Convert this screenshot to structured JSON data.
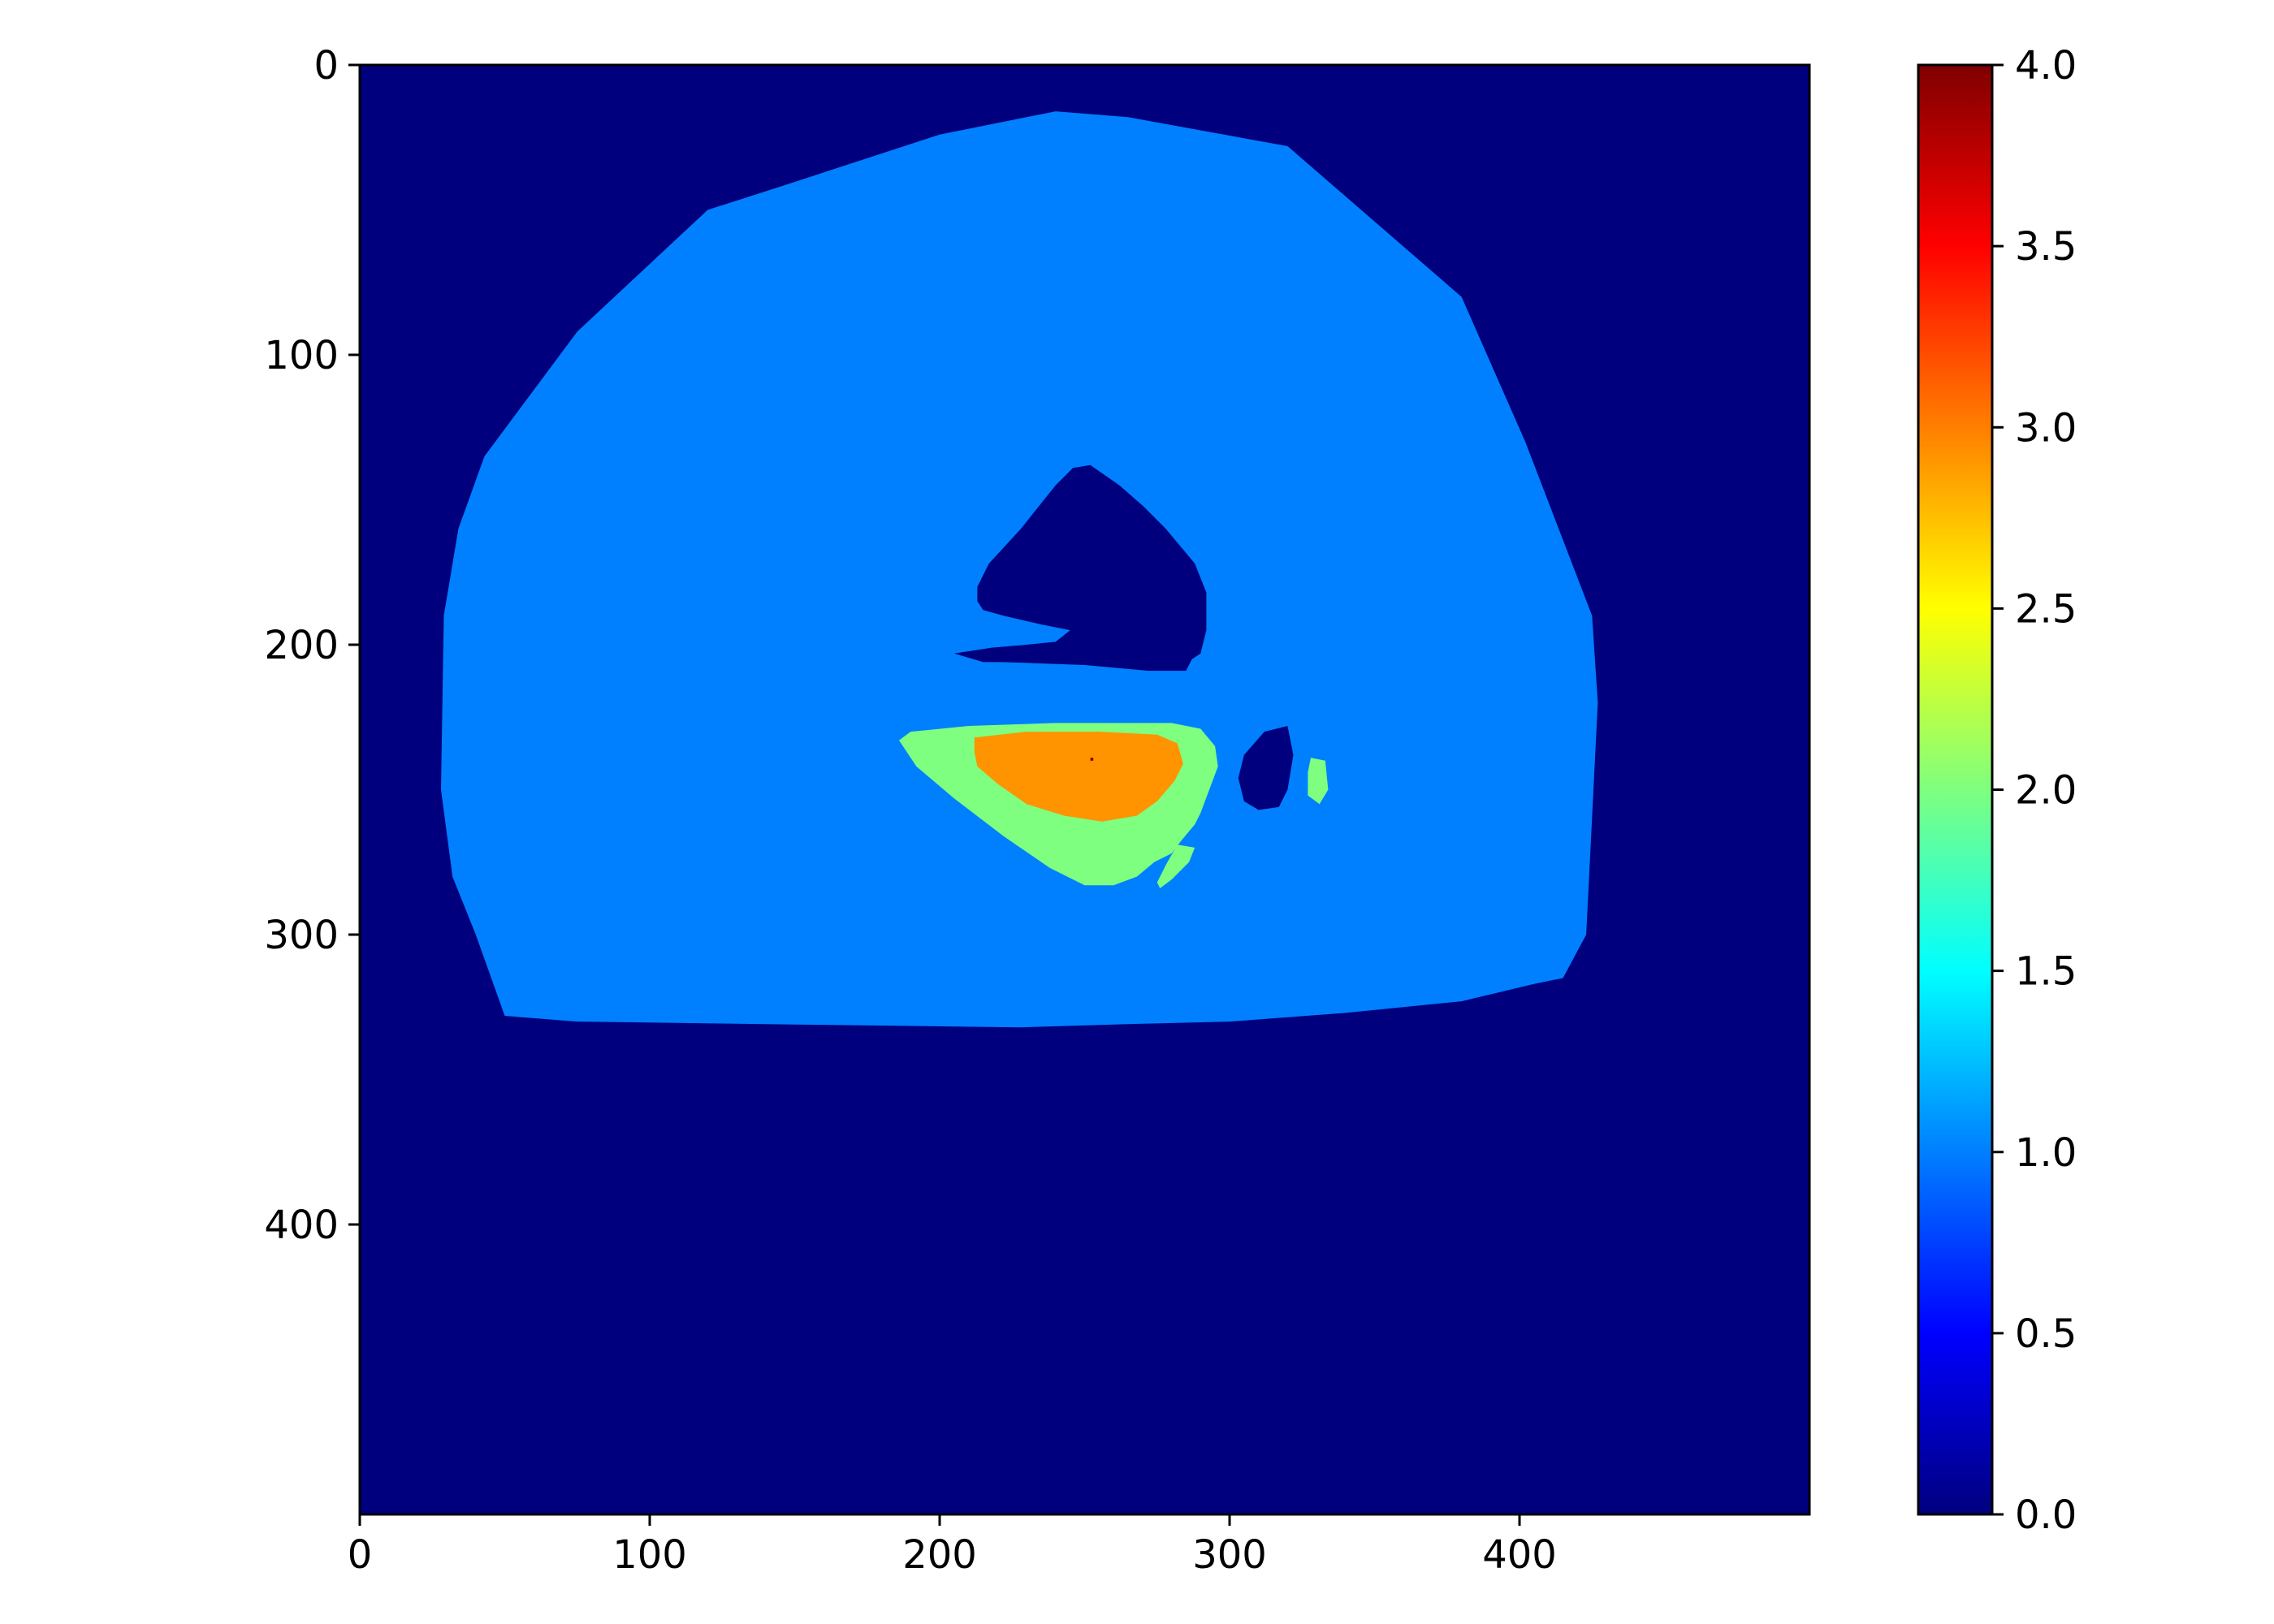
{
  "chart_data": {
    "type": "heatmap",
    "title": "",
    "xlabel": "",
    "ylabel": "",
    "image_shape": [
      500,
      500
    ],
    "xlim": [
      0,
      500
    ],
    "ylim": [
      500,
      0
    ],
    "xticks": [
      0,
      100,
      200,
      300,
      400
    ],
    "yticks": [
      0,
      100,
      200,
      300,
      400
    ],
    "colormap": "jet",
    "background_value": 0,
    "colorbar": {
      "range": [
        0.0,
        4.0
      ],
      "ticks": [
        "0.0",
        "0.5",
        "1.0",
        "1.5",
        "2.0",
        "2.5",
        "3.0",
        "3.5",
        "4.0"
      ],
      "position": "right",
      "colors": [
        "#00007f",
        "#0000ff",
        "#007fff",
        "#00ffff",
        "#7fff7f",
        "#ffff00",
        "#ff7f00",
        "#ff0000",
        "#7f0000"
      ]
    },
    "regions": [
      {
        "value": 1,
        "color": "#0080ff",
        "polygon": [
          [
            240,
            16
          ],
          [
            265,
            18
          ],
          [
            320,
            28
          ],
          [
            380,
            80
          ],
          [
            402,
            130
          ],
          [
            425,
            190
          ],
          [
            427,
            220
          ],
          [
            423,
            300
          ],
          [
            415,
            315
          ],
          [
            405,
            317
          ],
          [
            380,
            323
          ],
          [
            340,
            327
          ],
          [
            300,
            330
          ],
          [
            260,
            331
          ],
          [
            228,
            332
          ],
          [
            150,
            331
          ],
          [
            75,
            330
          ],
          [
            50,
            328
          ],
          [
            40,
            300
          ],
          [
            32,
            280
          ],
          [
            28,
            250
          ],
          [
            29,
            190
          ],
          [
            34,
            160
          ],
          [
            43,
            135
          ],
          [
            75,
            92
          ],
          [
            120,
            50
          ],
          [
            145,
            42
          ],
          [
            200,
            24
          ]
        ]
      },
      {
        "value": 0,
        "color": "#00007f",
        "polygon": [
          [
            252,
            138
          ],
          [
            262,
            145
          ],
          [
            270,
            152
          ],
          [
            278,
            160
          ],
          [
            288,
            172
          ],
          [
            292,
            182
          ],
          [
            292,
            195
          ],
          [
            290,
            203
          ],
          [
            287,
            205
          ],
          [
            285,
            209
          ],
          [
            272,
            209
          ],
          [
            250,
            207
          ],
          [
            222,
            206
          ],
          [
            220,
            206
          ],
          [
            215,
            206
          ],
          [
            205,
            203
          ],
          [
            218,
            201
          ],
          [
            230,
            200
          ],
          [
            240,
            199
          ],
          [
            245,
            195
          ],
          [
            235,
            193
          ],
          [
            222,
            190
          ],
          [
            215,
            188
          ],
          [
            213,
            185
          ],
          [
            213,
            180
          ],
          [
            217,
            172
          ],
          [
            228,
            160
          ],
          [
            240,
            145
          ],
          [
            246,
            139
          ]
        ]
      },
      {
        "value": 2,
        "color": "#7fff7f",
        "polygon": [
          [
            186,
            233
          ],
          [
            190,
            230
          ],
          [
            210,
            228
          ],
          [
            240,
            227
          ],
          [
            260,
            227
          ],
          [
            280,
            227
          ],
          [
            290,
            229
          ],
          [
            295,
            235
          ],
          [
            296,
            242
          ],
          [
            293,
            250
          ],
          [
            290,
            258
          ],
          [
            288,
            262
          ],
          [
            283,
            268
          ],
          [
            280,
            272
          ],
          [
            274,
            275
          ],
          [
            268,
            280
          ],
          [
            260,
            283
          ],
          [
            250,
            283
          ],
          [
            238,
            277
          ],
          [
            222,
            266
          ],
          [
            205,
            253
          ],
          [
            192,
            242
          ]
        ]
      },
      {
        "value": 3,
        "color": "#ff9400",
        "polygon": [
          [
            212,
            232
          ],
          [
            230,
            230
          ],
          [
            255,
            230
          ],
          [
            275,
            231
          ],
          [
            282,
            234
          ],
          [
            284,
            241
          ],
          [
            281,
            247
          ],
          [
            275,
            254
          ],
          [
            268,
            259
          ],
          [
            256,
            261
          ],
          [
            243,
            259
          ],
          [
            230,
            255
          ],
          [
            220,
            248
          ],
          [
            213,
            242
          ],
          [
            212,
            237
          ]
        ]
      },
      {
        "value": 2,
        "color": "#7fff7f",
        "polygon": [
          [
            282,
            269
          ],
          [
            288,
            270
          ],
          [
            286,
            275
          ],
          [
            280,
            281
          ],
          [
            276,
            284
          ],
          [
            275,
            282
          ],
          [
            278,
            276
          ]
        ]
      },
      {
        "value": 0,
        "color": "#00007f",
        "polygon": [
          [
            312,
            230
          ],
          [
            320,
            228
          ],
          [
            322,
            238
          ],
          [
            320,
            250
          ],
          [
            317,
            256
          ],
          [
            310,
            257
          ],
          [
            305,
            254
          ],
          [
            303,
            246
          ],
          [
            305,
            238
          ]
        ]
      },
      {
        "value": 2,
        "color": "#7fff7f",
        "polygon": [
          [
            328,
            239
          ],
          [
            333,
            240
          ],
          [
            334,
            250
          ],
          [
            331,
            255
          ],
          [
            327,
            252
          ],
          [
            327,
            244
          ]
        ]
      },
      {
        "value": 4,
        "color": "#7f0000",
        "polygon": [
          [
            252,
            239
          ],
          [
            253,
            239
          ],
          [
            253,
            240
          ],
          [
            252,
            240
          ]
        ]
      }
    ]
  }
}
